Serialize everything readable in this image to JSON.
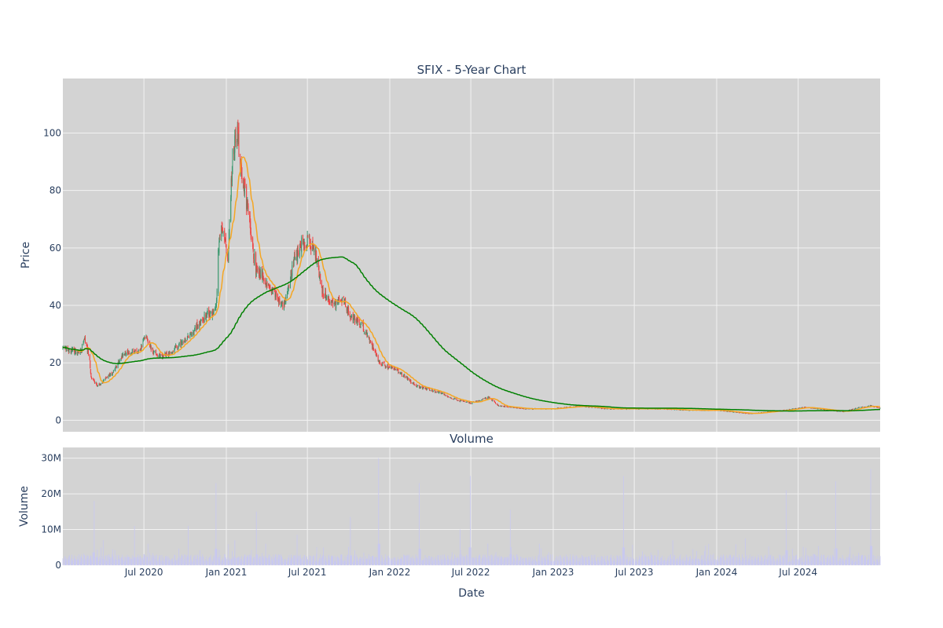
{
  "colors": {
    "plot_bg": "#d3d3d3",
    "grid": "#f2f2f2",
    "increasing": "#3d9970",
    "decreasing": "#ef4444",
    "ma_short": "#f5a623",
    "ma_long": "#008000",
    "volume": "#c8c8f0",
    "text": "#2a3f5f"
  },
  "chart_data": [
    {
      "type": "candlestick",
      "title": "SFIX - 5-Year Chart",
      "ylabel": "Price",
      "ylim": [
        -4,
        119
      ],
      "yticks": [
        0,
        20,
        40,
        60,
        80,
        100
      ],
      "x_range": [
        "2020-01-02",
        "2024-12-31"
      ],
      "grid": true,
      "price_anchors": [
        [
          "2020-01-02",
          25
        ],
        [
          "2020-02-10",
          23.5
        ],
        [
          "2020-02-20",
          28
        ],
        [
          "2020-03-01",
          22
        ],
        [
          "2020-03-05",
          15
        ],
        [
          "2020-03-20",
          12
        ],
        [
          "2020-04-10",
          15
        ],
        [
          "2020-04-25",
          17
        ],
        [
          "2020-05-10",
          22
        ],
        [
          "2020-06-01",
          24
        ],
        [
          "2020-06-20",
          24
        ],
        [
          "2020-07-05",
          29
        ],
        [
          "2020-07-20",
          24
        ],
        [
          "2020-08-05",
          22
        ],
        [
          "2020-09-01",
          24
        ],
        [
          "2020-09-25",
          27
        ],
        [
          "2020-10-15",
          30
        ],
        [
          "2020-11-01",
          34
        ],
        [
          "2020-11-20",
          37
        ],
        [
          "2020-12-05",
          37
        ],
        [
          "2020-12-10",
          42
        ],
        [
          "2020-12-13",
          55
        ],
        [
          "2020-12-20",
          70
        ],
        [
          "2021-01-05",
          57
        ],
        [
          "2021-01-15",
          92
        ],
        [
          "2021-01-25",
          100
        ],
        [
          "2021-02-05",
          85
        ],
        [
          "2021-02-20",
          72
        ],
        [
          "2021-03-08",
          52
        ],
        [
          "2021-03-25",
          50
        ],
        [
          "2021-04-15",
          45
        ],
        [
          "2021-05-10",
          40
        ],
        [
          "2021-06-01",
          55
        ],
        [
          "2021-06-20",
          62
        ],
        [
          "2021-07-05",
          62
        ],
        [
          "2021-07-20",
          58
        ],
        [
          "2021-08-05",
          44
        ],
        [
          "2021-09-01",
          40
        ],
        [
          "2021-09-20",
          42
        ],
        [
          "2021-10-05",
          36
        ],
        [
          "2021-11-01",
          33
        ],
        [
          "2021-12-10",
          20
        ],
        [
          "2022-01-20",
          17
        ],
        [
          "2022-03-01",
          12
        ],
        [
          "2022-04-15",
          10
        ],
        [
          "2022-06-01",
          7
        ],
        [
          "2022-07-01",
          6
        ],
        [
          "2022-08-10",
          8
        ],
        [
          "2022-09-01",
          5
        ],
        [
          "2022-11-01",
          4
        ],
        [
          "2023-01-01",
          4
        ],
        [
          "2023-03-01",
          5
        ],
        [
          "2023-05-01",
          4
        ],
        [
          "2023-07-01",
          4
        ],
        [
          "2023-09-01",
          4
        ],
        [
          "2023-11-01",
          3.5
        ],
        [
          "2024-01-01",
          3.5
        ],
        [
          "2024-03-15",
          2.3
        ],
        [
          "2024-06-01",
          3.5
        ],
        [
          "2024-07-15",
          4.5
        ],
        [
          "2024-09-10",
          3.5
        ],
        [
          "2024-10-10",
          3
        ],
        [
          "2024-11-15",
          4.5
        ],
        [
          "2024-12-10",
          5
        ],
        [
          "2024-12-31",
          4.2
        ]
      ],
      "short_ma_label": "",
      "long_ma_label": ""
    },
    {
      "type": "bar",
      "title": "Volume",
      "ylabel": "Volume",
      "xlabel": "Date",
      "ylim": [
        0,
        33000000
      ],
      "yticks": [
        0,
        10000000,
        20000000,
        30000000
      ],
      "ytick_labels": [
        "0",
        "10M",
        "20M",
        "30M"
      ],
      "xticks": [
        "2020-07-01",
        "2021-01-01",
        "2021-07-01",
        "2022-01-01",
        "2022-07-01",
        "2023-01-01",
        "2023-07-01",
        "2024-01-01",
        "2024-07-01"
      ],
      "xtick_labels": [
        "Jul 2020",
        "Jan 2021",
        "Jul 2021",
        "Jan 2022",
        "Jul 2022",
        "Jan 2023",
        "Jul 2023",
        "Jan 2024",
        "Jul 2024"
      ],
      "grid": true,
      "volume_spikes": [
        [
          "2020-03-12",
          18000000
        ],
        [
          "2020-04-01",
          7000000
        ],
        [
          "2020-06-10",
          11000000
        ],
        [
          "2020-07-10",
          6000000
        ],
        [
          "2020-10-08",
          11000000
        ],
        [
          "2020-12-09",
          23000000
        ],
        [
          "2021-01-20",
          7000000
        ],
        [
          "2021-03-09",
          15000000
        ],
        [
          "2021-06-08",
          8500000
        ],
        [
          "2021-10-05",
          13500000
        ],
        [
          "2021-12-07",
          30000000
        ],
        [
          "2022-03-08",
          23000000
        ],
        [
          "2022-06-07",
          10000000
        ],
        [
          "2022-06-30",
          25000000
        ],
        [
          "2022-09-27",
          15500000
        ],
        [
          "2022-12-01",
          6000000
        ],
        [
          "2023-06-07",
          25000000
        ],
        [
          "2023-09-25",
          7000000
        ],
        [
          "2023-12-05",
          4000000
        ],
        [
          "2024-03-05",
          7500000
        ],
        [
          "2024-06-04",
          21000000
        ],
        [
          "2024-09-23",
          23500000
        ],
        [
          "2024-12-10",
          27000000
        ]
      ],
      "base_volume": 1800000
    }
  ]
}
